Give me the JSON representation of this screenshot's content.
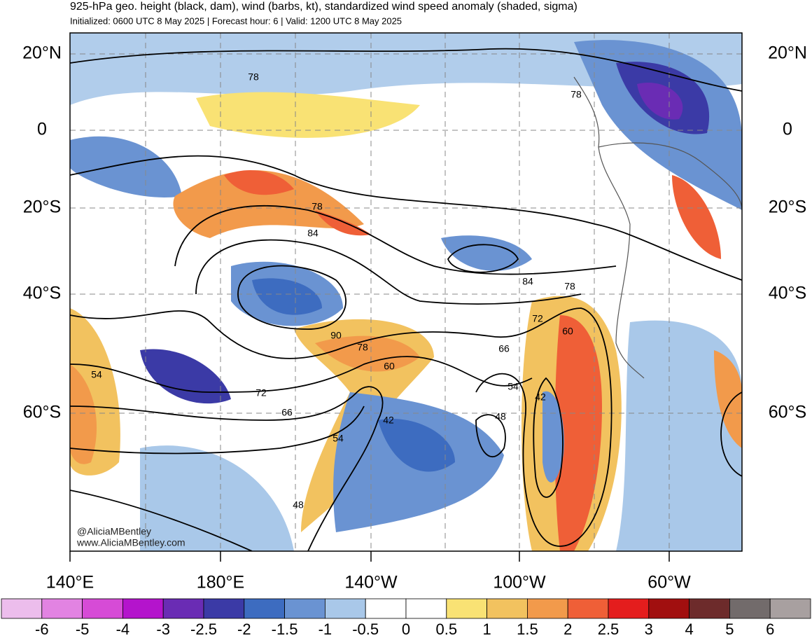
{
  "header": {
    "title": "925-hPa geo. height (black, dam), wind (barbs, kt), standardized wind speed anomaly (shaded, sigma)",
    "subtitle": "Initialized: 0600 UTC 8 May 2025 | Forecast hour: 6 | Valid: 1200 UTC 8 May 2025"
  },
  "map": {
    "lat_labels": [
      "20°N",
      "0",
      "20°S",
      "40°S",
      "60°S"
    ],
    "lon_labels": [
      "140°E",
      "180°E",
      "140°W",
      "100°W",
      "60°W"
    ],
    "contour_labels": [
      "78",
      "78",
      "78",
      "84",
      "84",
      "78",
      "72",
      "90",
      "78",
      "60",
      "66",
      "60",
      "54",
      "54",
      "72",
      "42",
      "66",
      "48",
      "42",
      "54",
      "48"
    ],
    "watermark": [
      "@AliciaMBentley",
      "www.AliciaMBentley.com"
    ]
  },
  "colorbar": {
    "labels": [
      -6,
      -5,
      -4,
      -3,
      -2.5,
      -2,
      -1.5,
      -1,
      -0.5,
      0,
      0.5,
      1,
      1.5,
      2,
      2.5,
      3,
      4,
      5,
      6
    ],
    "colors": [
      "#ecbdec",
      "#e283e2",
      "#d64bd6",
      "#b414cc",
      "#6a2cb4",
      "#3b3aa6",
      "#3d6cc0",
      "#6a93d2",
      "#a9c8e9",
      "#ffffff",
      "#ffffff",
      "#f9e274",
      "#f2c25f",
      "#f29a4b",
      "#ef5f37",
      "#e41d1d",
      "#a10f0f",
      "#6d2b2b",
      "#726b6b",
      "#a8a0a0"
    ]
  }
}
